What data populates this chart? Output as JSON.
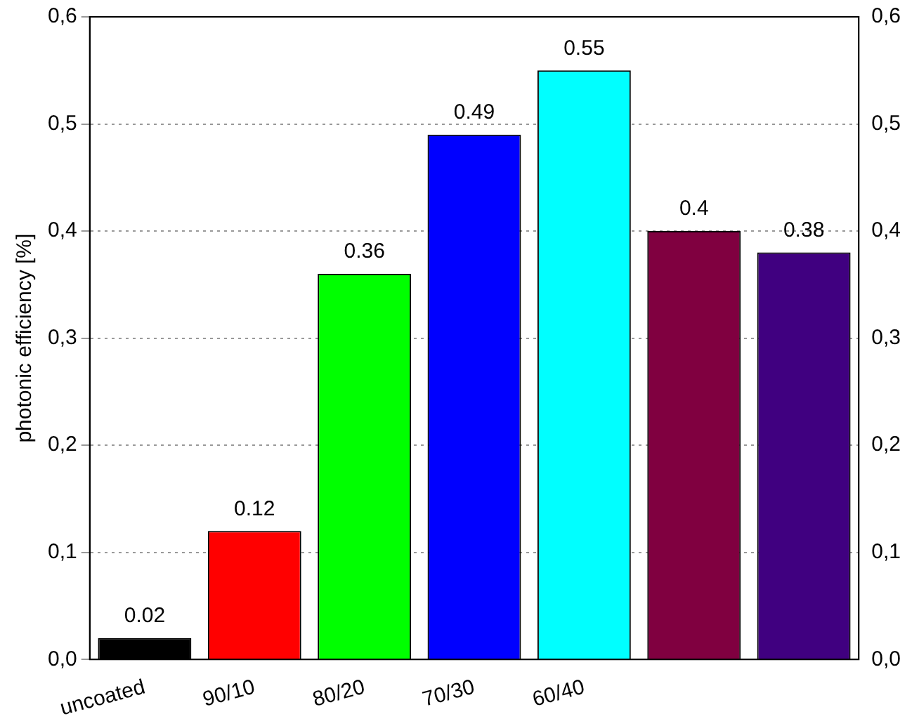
{
  "chart_data": {
    "type": "bar",
    "ylabel": "photonic efficiency [%]",
    "categories": [
      "uncoated",
      "90/10",
      "80/20",
      "70/30",
      "60/40",
      null,
      null
    ],
    "values": [
      0.02,
      0.12,
      0.36,
      0.49,
      0.55,
      0.4,
      0.38
    ],
    "colors": [
      "#000000",
      "#ff0000",
      "#00ff00",
      "#0000ff",
      "#00ffff",
      "#800040",
      "#400080"
    ],
    "ylim": [
      0,
      0.6
    ],
    "yticks": [
      {
        "value": 0,
        "label": "0,0"
      },
      {
        "value": 0.1,
        "label": "0,1"
      },
      {
        "value": 0.2,
        "label": "0,2"
      },
      {
        "value": 0.3,
        "label": "0,3"
      },
      {
        "value": 0.4,
        "label": "0,4"
      },
      {
        "value": 0.5,
        "label": "0,5"
      },
      {
        "value": 0.6,
        "label": "0,6"
      }
    ],
    "y2lim": [
      0,
      0.6
    ],
    "y2ticks": [
      {
        "value": 0,
        "label": "0,0"
      },
      {
        "value": 0.1,
        "label": "0,1"
      },
      {
        "value": 0.2,
        "label": "0,2"
      },
      {
        "value": 0.3,
        "label": "0,3"
      },
      {
        "value": 0.4,
        "label": "0,4"
      },
      {
        "value": 0.5,
        "label": "0,5"
      },
      {
        "value": 0.6,
        "label": "0,6"
      }
    ],
    "grid": "y",
    "data_labels": true,
    "legend": false
  }
}
